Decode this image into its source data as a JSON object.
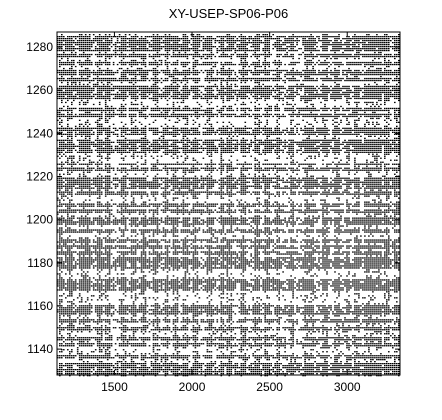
{
  "chart_data": {
    "type": "scatter",
    "title": "XY-USEP-SP06-P06",
    "xlabel": "",
    "ylabel": "",
    "xlim": [
      1130,
      3340
    ],
    "ylim": [
      1128,
      1287
    ],
    "x_ticks": [
      1500,
      2000,
      2500,
      3000
    ],
    "y_ticks": [
      1140,
      1160,
      1180,
      1200,
      1220,
      1240,
      1260,
      1280
    ],
    "grid": false,
    "legend": "none",
    "marker_color": "#000000",
    "dense_rows": [
      1129,
      1131,
      1133,
      1137,
      1142,
      1145,
      1150,
      1153,
      1157,
      1159,
      1160,
      1168,
      1170,
      1172,
      1178,
      1180,
      1182,
      1185,
      1188,
      1190,
      1195,
      1199,
      1201,
      1204,
      1207,
      1213,
      1215,
      1216,
      1218,
      1219,
      1224,
      1226,
      1232,
      1234,
      1235,
      1237,
      1240,
      1242,
      1249,
      1251,
      1257,
      1259,
      1260,
      1262,
      1265,
      1268,
      1269,
      1273,
      1276,
      1279,
      1281,
      1283,
      1285
    ],
    "dense_columns": [
      1150,
      1210,
      1280,
      1320,
      1395,
      1450,
      1550,
      1620,
      1680,
      1760,
      1830,
      1890,
      1950,
      2020,
      2110,
      2190,
      2230,
      2330,
      2420,
      2480,
      2550,
      2640,
      2730,
      2760,
      2850,
      2930,
      3000,
      3060,
      3120,
      3160,
      3200,
      3250,
      3310
    ]
  }
}
